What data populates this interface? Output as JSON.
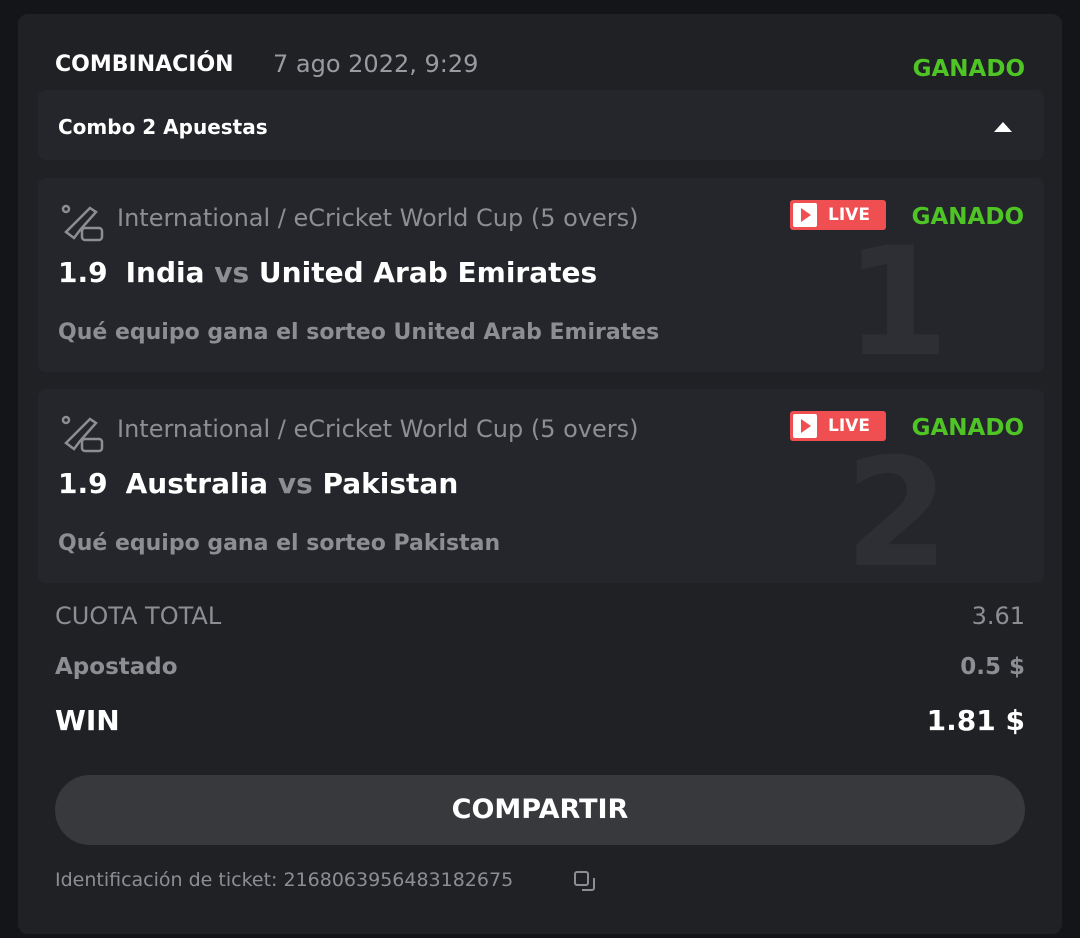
{
  "header": {
    "title": "COMBINACIÓN",
    "date": "7 ago 2022, 9:29",
    "status": "GANADO"
  },
  "combo": {
    "label": "Combo 2 Apuestas"
  },
  "bets": [
    {
      "number": "1",
      "league": "International / eCricket World Cup (5 overs)",
      "live": "LIVE",
      "status": "GANADO",
      "odd": "1.9",
      "home": "India",
      "vs": "vs",
      "away": "United Arab Emirates",
      "pick": "Qué equipo gana el sorteo United Arab Emirates"
    },
    {
      "number": "2",
      "league": "International / eCricket World Cup (5 overs)",
      "live": "LIVE",
      "status": "GANADO",
      "odd": "1.9",
      "home": "Australia",
      "vs": "vs",
      "away": "Pakistan",
      "pick": "Qué equipo gana el sorteo Pakistan"
    }
  ],
  "summary": {
    "total_label": "CUOTA TOTAL",
    "total": "3.61",
    "stake_label": "Apostado",
    "stake": "0.5 $",
    "win_label": "WIN",
    "win": "1.81 $"
  },
  "share_label": "COMPARTIR",
  "ticket": "Identificación de ticket: 2168063956483182675",
  "colors": {
    "won": "#4fc525",
    "live": "#f04f52",
    "card": "#202125"
  }
}
